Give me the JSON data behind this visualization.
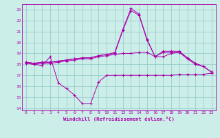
{
  "xlabel": "Windchill (Refroidissement éolien,°C)",
  "xlim": [
    -0.5,
    23.5
  ],
  "ylim": [
    13.8,
    23.5
  ],
  "yticks": [
    14,
    15,
    16,
    17,
    18,
    19,
    20,
    21,
    22,
    23
  ],
  "xticks": [
    0,
    1,
    2,
    3,
    4,
    5,
    6,
    7,
    8,
    9,
    10,
    11,
    12,
    13,
    14,
    15,
    16,
    17,
    18,
    19,
    20,
    21,
    22,
    23
  ],
  "bg_color": "#cceee8",
  "line_color": "#aa00aa",
  "grid_color": "#99cccc",
  "line1_x": [
    0,
    1,
    2,
    3,
    4,
    5,
    6,
    7,
    8,
    9,
    10,
    11,
    12,
    13,
    14,
    15,
    16,
    17,
    18,
    19,
    20,
    21,
    22,
    23
  ],
  "line1_y": [
    18.1,
    18.0,
    17.9,
    18.7,
    16.3,
    15.8,
    15.2,
    14.4,
    14.4,
    16.4,
    17.0,
    17.0,
    17.0,
    17.0,
    17.0,
    17.0,
    17.0,
    17.0,
    17.0,
    17.1,
    17.1,
    17.1,
    17.1,
    17.2
  ],
  "line2_x": [
    0,
    1,
    2,
    3,
    4,
    5,
    6,
    7,
    8,
    9,
    10,
    11,
    12,
    13,
    14,
    15,
    16,
    17,
    18,
    19,
    20,
    21,
    22,
    23
  ],
  "line2_y": [
    18.1,
    18.0,
    18.1,
    18.1,
    18.2,
    18.3,
    18.4,
    18.5,
    18.5,
    18.7,
    18.8,
    18.9,
    19.0,
    19.0,
    19.1,
    19.1,
    18.7,
    18.7,
    19.0,
    19.1,
    18.5,
    18.0,
    17.8,
    17.3
  ],
  "line3_x": [
    0,
    1,
    2,
    3,
    4,
    5,
    6,
    7,
    8,
    9,
    10,
    11,
    12,
    13,
    14,
    15,
    16,
    17,
    18,
    19,
    20,
    21,
    22,
    23
  ],
  "line3_y": [
    18.2,
    18.1,
    18.2,
    18.2,
    18.3,
    18.4,
    18.5,
    18.6,
    18.6,
    18.8,
    18.9,
    19.0,
    21.1,
    22.9,
    22.5,
    20.2,
    18.7,
    19.1,
    19.1,
    19.1,
    18.6,
    18.1,
    17.8,
    17.3
  ],
  "line4_x": [
    0,
    1,
    2,
    3,
    4,
    5,
    6,
    7,
    8,
    9,
    10,
    11,
    12,
    13,
    14,
    15,
    16,
    17,
    18,
    19,
    20,
    21,
    22,
    23
  ],
  "line4_y": [
    18.2,
    18.1,
    18.2,
    18.2,
    18.3,
    18.4,
    18.5,
    18.6,
    18.6,
    18.8,
    18.9,
    19.1,
    21.2,
    23.1,
    22.6,
    20.3,
    18.7,
    19.2,
    19.2,
    19.2,
    18.6,
    18.1,
    17.8,
    17.3
  ]
}
